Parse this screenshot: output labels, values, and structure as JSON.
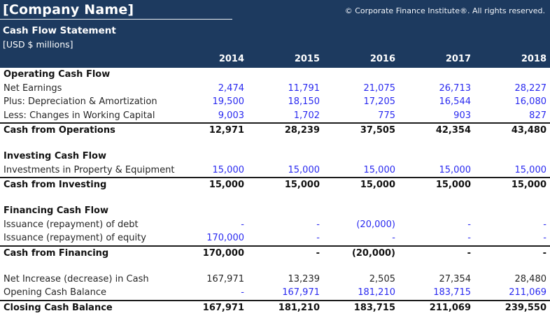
{
  "header": {
    "company_name": "[Company Name]",
    "copyright": "© Corporate Finance Institute®. All rights reserved.",
    "statement_title": "Cash Flow Statement",
    "units_label": "[USD $ millions]",
    "years": [
      "2014",
      "2015",
      "2016",
      "2017",
      "2018"
    ]
  },
  "colors": {
    "header_navy": "#1d3a5f",
    "value_blue": "#2a2af0",
    "label_dark": "#262626",
    "total_black": "#111111",
    "rule_dark": "#1b1b1b"
  },
  "table": {
    "rows": [
      {
        "type": "heading",
        "label": "Operating Cash Flow"
      },
      {
        "type": "input",
        "label": "Net Earnings",
        "values": [
          "2,474",
          "11,791",
          "21,075",
          "26,713",
          "28,227"
        ]
      },
      {
        "type": "input",
        "label": "Plus: Depreciation & Amortization",
        "values": [
          "19,500",
          "18,150",
          "17,205",
          "16,544",
          "16,080"
        ]
      },
      {
        "type": "input",
        "label": "Less: Changes in Working Capital",
        "values": [
          "9,003",
          "1,702",
          "775",
          "903",
          "827"
        ]
      },
      {
        "type": "total",
        "label": "Cash from Operations",
        "values": [
          "12,971",
          "28,239",
          "37,505",
          "42,354",
          "43,480"
        ]
      },
      {
        "type": "spacer"
      },
      {
        "type": "heading",
        "label": "Investing Cash Flow"
      },
      {
        "type": "input",
        "label": "Investments in Property & Equipment",
        "values": [
          "15,000",
          "15,000",
          "15,000",
          "15,000",
          "15,000"
        ]
      },
      {
        "type": "total",
        "label": "Cash from Investing",
        "values": [
          "15,000",
          "15,000",
          "15,000",
          "15,000",
          "15,000"
        ]
      },
      {
        "type": "spacer"
      },
      {
        "type": "heading",
        "label": "Financing Cash Flow"
      },
      {
        "type": "input",
        "label": "Issuance (repayment) of debt",
        "values": [
          "-",
          "-",
          "(20,000)",
          "-",
          "-"
        ]
      },
      {
        "type": "input",
        "label": "Issuance (repayment) of equity",
        "values": [
          "170,000",
          "-",
          "-",
          "-",
          "-"
        ]
      },
      {
        "type": "total",
        "label": "Cash from Financing",
        "values": [
          "170,000",
          "-",
          "(20,000)",
          "-",
          "-"
        ]
      },
      {
        "type": "spacer"
      },
      {
        "type": "calc",
        "label": "Net Increase (decrease) in Cash",
        "values": [
          "167,971",
          "13,239",
          "2,505",
          "27,354",
          "28,480"
        ]
      },
      {
        "type": "input",
        "label": "Opening Cash Balance",
        "values": [
          "-",
          "167,971",
          "181,210",
          "183,715",
          "211,069"
        ]
      },
      {
        "type": "total",
        "label": "Closing Cash Balance",
        "values": [
          "167,971",
          "181,210",
          "183,715",
          "211,069",
          "239,550"
        ]
      }
    ]
  }
}
